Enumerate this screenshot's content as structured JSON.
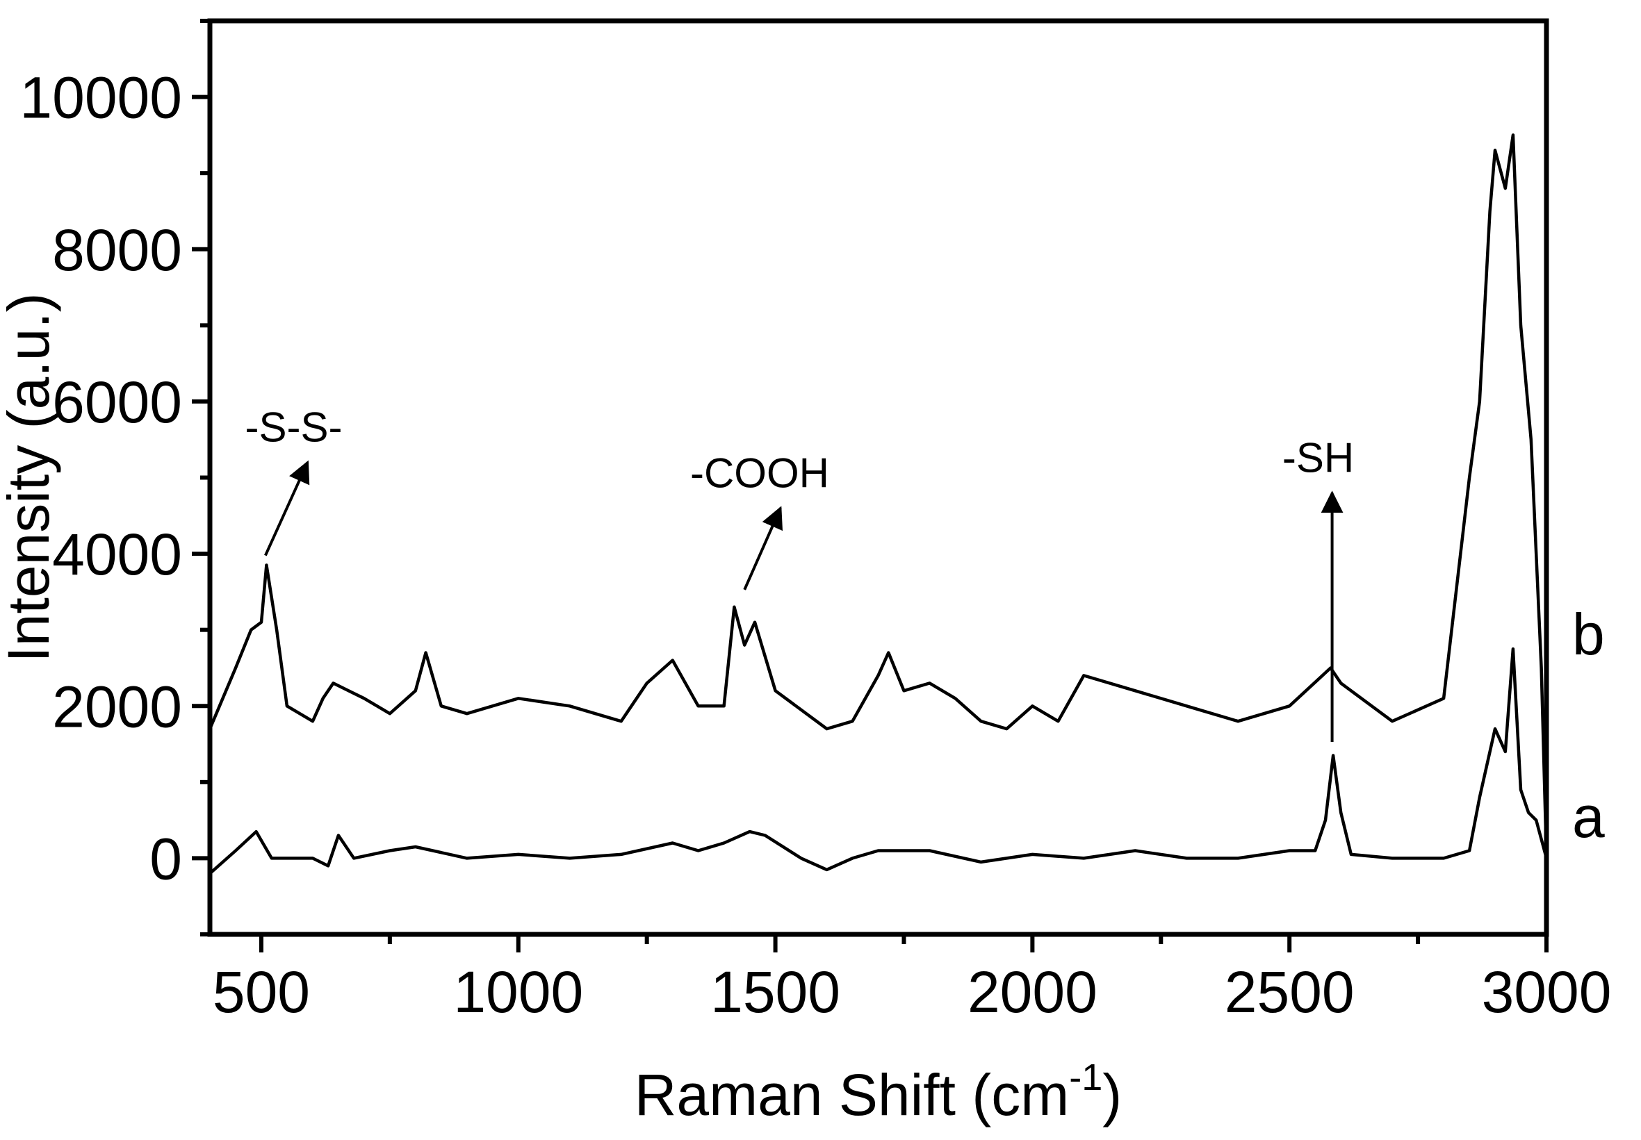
{
  "chart_data": {
    "type": "line",
    "title": "",
    "xlabel": "Raman Shift (cm",
    "xlabel_sup": "-1",
    "xlabel_close": ")",
    "ylabel": "Intensity (a.u.)",
    "xlim": [
      400,
      3000
    ],
    "ylim": [
      -1000,
      11000
    ],
    "xticks": [
      500,
      1000,
      1500,
      2000,
      2500,
      3000
    ],
    "yticks": [
      0,
      2000,
      4000,
      6000,
      8000,
      10000
    ],
    "xtick_labels": [
      "500",
      "1000",
      "1500",
      "2000",
      "2500",
      "3000"
    ],
    "ytick_labels": [
      "0",
      "2000",
      "4000",
      "6000",
      "8000",
      "10000"
    ],
    "grid": false,
    "series": [
      {
        "name": "a",
        "x": [
          400,
          450,
          490,
          520,
          600,
          630,
          650,
          680,
          750,
          800,
          900,
          1000,
          1100,
          1200,
          1300,
          1350,
          1400,
          1450,
          1480,
          1550,
          1600,
          1650,
          1700,
          1800,
          1900,
          2000,
          2100,
          2200,
          2300,
          2400,
          2500,
          2550,
          2570,
          2585,
          2600,
          2620,
          2700,
          2800,
          2850,
          2870,
          2900,
          2920,
          2935,
          2950,
          2965,
          2980,
          3000
        ],
        "y": [
          -200,
          100,
          350,
          0,
          0,
          -100,
          300,
          0,
          100,
          150,
          0,
          50,
          0,
          50,
          200,
          100,
          200,
          350,
          300,
          0,
          -150,
          0,
          100,
          100,
          -50,
          50,
          0,
          100,
          0,
          0,
          100,
          100,
          500,
          1350,
          600,
          50,
          0,
          0,
          100,
          800,
          1700,
          1400,
          2750,
          900,
          600,
          500,
          0
        ]
      },
      {
        "name": "b",
        "x": [
          400,
          450,
          480,
          500,
          510,
          530,
          550,
          600,
          620,
          640,
          700,
          750,
          800,
          820,
          850,
          900,
          1000,
          1100,
          1200,
          1250,
          1300,
          1350,
          1400,
          1420,
          1440,
          1460,
          1500,
          1600,
          1650,
          1700,
          1720,
          1750,
          1800,
          1850,
          1900,
          1950,
          2000,
          2050,
          2100,
          2200,
          2300,
          2400,
          2500,
          2580,
          2600,
          2700,
          2800,
          2850,
          2870,
          2890,
          2900,
          2920,
          2935,
          2950,
          2970,
          2990,
          3000
        ],
        "y": [
          1700,
          2500,
          3000,
          3100,
          3850,
          3000,
          2000,
          1800,
          2100,
          2300,
          2100,
          1900,
          2200,
          2700,
          2000,
          1900,
          2100,
          2000,
          1800,
          2300,
          2600,
          2000,
          2000,
          3300,
          2800,
          3100,
          2200,
          1700,
          1800,
          2400,
          2700,
          2200,
          2300,
          2100,
          1800,
          1700,
          2000,
          1800,
          2400,
          2200,
          2000,
          1800,
          2000,
          2500,
          2300,
          1800,
          2100,
          5000,
          6000,
          8500,
          9300,
          8800,
          9500,
          7000,
          5500,
          2500,
          0
        ]
      }
    ],
    "series_labels": [
      "a",
      "b"
    ],
    "annotations": [
      {
        "text": "-S-S-",
        "x": 508,
        "y": 3850,
        "text_x": 590,
        "text_y": 5200
      },
      {
        "text": "-COOH",
        "x": 1440,
        "y": 3400,
        "text_x": 1510,
        "text_y": 4600
      },
      {
        "text": "-SH",
        "x": 2583,
        "y": 1400,
        "text_x": 2583,
        "text_y": 4800
      }
    ]
  }
}
